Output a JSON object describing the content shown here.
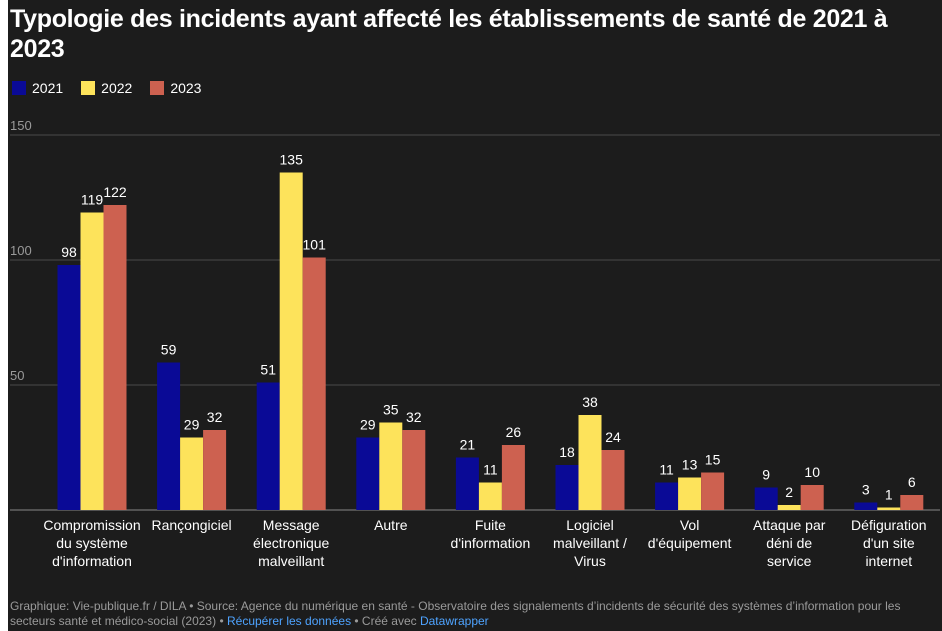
{
  "colors": {
    "background": "#1c1c1c",
    "grid": "#4a4a4a",
    "text": "#ffffff",
    "muted": "#9a9a9a",
    "link": "#4ea3ff"
  },
  "footer": {
    "source_text": "Graphique: Vie-publique.fr / DILA • Source: Agence du numérique en santé - Observatoire des signalements d’incidents de sécurité des systèmes d’information pour les secteurs santé et médico-social (2023)",
    "separator1": " • ",
    "link_data": "Récupérer les données",
    "separator2": " • Créé avec ",
    "link_tool": "Datawrapper"
  },
  "chart_data": {
    "type": "bar",
    "title": "Typologie des incidents ayant affecté les établissements de santé de 2021 à 2023",
    "xlabel": "",
    "ylabel": "",
    "ylim": [
      0,
      150
    ],
    "yticks": [
      50,
      100,
      150
    ],
    "grid": true,
    "legend_position": "top-left",
    "categories": [
      [
        "Compromission",
        "du système",
        "d'information"
      ],
      [
        "Rançongiciel"
      ],
      [
        "Message",
        "électronique",
        "malveillant"
      ],
      [
        "Autre"
      ],
      [
        "Fuite",
        "d'information"
      ],
      [
        "Logiciel",
        "malveillant /",
        "Virus"
      ],
      [
        "Vol",
        "d'équipement"
      ],
      [
        "Attaque par",
        "déni de",
        "service"
      ],
      [
        "Défiguration",
        "d'un site",
        "internet"
      ]
    ],
    "series": [
      {
        "name": "2021",
        "color": "#0a0a96",
        "values": [
          98,
          59,
          51,
          29,
          21,
          18,
          11,
          9,
          3
        ]
      },
      {
        "name": "2022",
        "color": "#fde35b",
        "values": [
          119,
          29,
          135,
          35,
          11,
          38,
          13,
          2,
          1
        ]
      },
      {
        "name": "2023",
        "color": "#cd6150",
        "values": [
          122,
          32,
          101,
          32,
          26,
          24,
          15,
          10,
          6
        ]
      }
    ]
  }
}
